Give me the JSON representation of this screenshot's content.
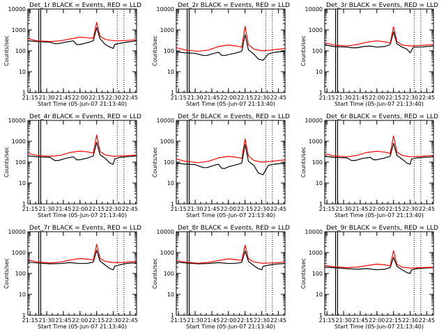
{
  "chart_data": [
    {
      "type": "line",
      "title": "Det_1r BLACK = Events, RED = LLD",
      "xlabel": "Start Time (05-Jun-07 21:13:40)",
      "ylabel": "Counts/sec",
      "xticks": [
        "21:15",
        "21:30",
        "21:45",
        "22:00",
        "22:15",
        "22:30",
        "22:45"
      ],
      "yticks": [
        "1",
        "10",
        "100",
        "1000",
        "10000"
      ],
      "xlim": [
        21.217,
        22.85
      ],
      "ylim": [
        1,
        10000
      ],
      "yscale": "log",
      "series": [
        {
          "color": "#000000",
          "x": [
            21.22,
            21.35,
            21.55,
            21.62,
            21.68,
            21.78,
            21.9,
            21.95,
            22.0,
            22.12,
            22.2,
            22.25,
            22.3,
            22.38,
            22.45,
            22.5,
            22.52,
            22.6,
            22.7,
            22.85
          ],
          "y": [
            300,
            280,
            260,
            220,
            220,
            260,
            300,
            200,
            200,
            250,
            300,
            1300,
            380,
            200,
            150,
            130,
            200,
            230,
            260,
            300
          ]
        },
        {
          "color": "#ff0000",
          "x": [
            21.22,
            21.35,
            21.55,
            21.7,
            21.85,
            22.0,
            22.12,
            22.2,
            22.25,
            22.3,
            22.38,
            22.45,
            22.55,
            22.65,
            22.75,
            22.85
          ],
          "y": [
            380,
            300,
            280,
            300,
            370,
            450,
            420,
            400,
            2300,
            500,
            350,
            320,
            300,
            310,
            320,
            340
          ]
        }
      ],
      "vlines_solid": [
        21.38,
        21.41
      ],
      "vlines_dotted": [
        22.56,
        22.66
      ]
    },
    {
      "type": "line",
      "title": "Det_2r BLACK = Events, RED = LLD",
      "xlabel": "Start Time (05-Jun-07 21:13:40)",
      "ylabel": "Counts/sec",
      "xticks": [
        "21:15",
        "21:30",
        "21:45",
        "22:00",
        "22:15",
        "22:30",
        "22:45"
      ],
      "yticks": [
        "1",
        "10",
        "100",
        "1000",
        "10000"
      ],
      "xlim": [
        21.217,
        22.85
      ],
      "ylim": [
        1,
        10000
      ],
      "yscale": "log",
      "series": [
        {
          "color": "#000000",
          "x": [
            21.22,
            21.35,
            21.5,
            21.62,
            21.68,
            21.75,
            21.85,
            21.9,
            21.95,
            22.0,
            22.12,
            22.2,
            22.25,
            22.3,
            22.38,
            22.45,
            22.52,
            22.6,
            22.7,
            22.85
          ],
          "y": [
            90,
            80,
            75,
            60,
            60,
            70,
            85,
            60,
            60,
            65,
            80,
            95,
            600,
            110,
            70,
            40,
            35,
            70,
            85,
            95
          ]
        },
        {
          "color": "#ff0000",
          "x": [
            21.22,
            21.35,
            21.55,
            21.7,
            21.85,
            22.0,
            22.12,
            22.2,
            22.25,
            22.3,
            22.38,
            22.5,
            22.65,
            22.85
          ],
          "y": [
            140,
            110,
            95,
            110,
            160,
            190,
            170,
            150,
            1500,
            200,
            120,
            100,
            110,
            130
          ]
        }
      ],
      "vlines_solid": [
        21.38,
        21.41
      ],
      "vlines_dotted": [
        22.56,
        22.66
      ]
    },
    {
      "type": "line",
      "title": "Det_3r BLACK = Events, RED = LLD",
      "xlabel": "Start Time (05-Jun-07 21:13:40)",
      "ylabel": "Counts/sec",
      "xticks": [
        "21:15",
        "21:30",
        "21:45",
        "22:00",
        "22:15",
        "22:30",
        "22:45"
      ],
      "yticks": [
        "1",
        "10",
        "100",
        "1000",
        "10000"
      ],
      "xlim": [
        21.217,
        22.85
      ],
      "ylim": [
        1,
        10000
      ],
      "yscale": "log",
      "series": [
        {
          "color": "#000000",
          "x": [
            21.22,
            21.35,
            21.55,
            21.62,
            21.7,
            21.8,
            21.9,
            22.0,
            22.12,
            22.2,
            22.25,
            22.3,
            22.38,
            22.45,
            22.5,
            22.55,
            22.65,
            22.75,
            22.85
          ],
          "y": [
            190,
            160,
            150,
            140,
            140,
            160,
            170,
            150,
            160,
            200,
            800,
            220,
            150,
            120,
            80,
            150,
            150,
            160,
            170
          ]
        },
        {
          "color": "#ff0000",
          "x": [
            21.22,
            21.35,
            21.55,
            21.7,
            21.85,
            22.0,
            22.12,
            22.2,
            22.25,
            22.3,
            22.38,
            22.5,
            22.65,
            22.85
          ],
          "y": [
            240,
            190,
            170,
            200,
            260,
            300,
            270,
            230,
            1400,
            280,
            190,
            170,
            180,
            200
          ]
        }
      ],
      "vlines_solid": [
        21.38,
        21.41
      ],
      "vlines_dotted": [
        22.56,
        22.66
      ]
    },
    {
      "type": "line",
      "title": "Det_4r BLACK = Events, RED = LLD",
      "xlabel": "Start Time (05-Jun-07 21:13:40)",
      "ylabel": "Counts/sec",
      "xticks": [
        "21:15",
        "21:30",
        "21:45",
        "22:00",
        "22:15",
        "22:30",
        "22:45"
      ],
      "yticks": [
        "1",
        "10",
        "100",
        "1000",
        "10000"
      ],
      "xlim": [
        21.217,
        22.85
      ],
      "ylim": [
        1,
        10000
      ],
      "yscale": "log",
      "series": [
        {
          "color": "#000000",
          "x": [
            21.22,
            21.35,
            21.55,
            21.62,
            21.68,
            21.78,
            21.9,
            21.95,
            22.0,
            22.12,
            22.2,
            22.25,
            22.3,
            22.38,
            22.45,
            22.5,
            22.52,
            22.6,
            22.7,
            22.85
          ],
          "y": [
            200,
            180,
            170,
            120,
            120,
            150,
            180,
            130,
            130,
            160,
            200,
            900,
            230,
            150,
            90,
            80,
            140,
            170,
            180,
            200
          ]
        },
        {
          "color": "#ff0000",
          "x": [
            21.22,
            21.35,
            21.55,
            21.7,
            21.85,
            22.0,
            22.12,
            22.2,
            22.25,
            22.3,
            22.38,
            22.5,
            22.65,
            22.85
          ],
          "y": [
            260,
            210,
            190,
            210,
            290,
            340,
            310,
            270,
            2000,
            320,
            220,
            190,
            200,
            220
          ]
        }
      ],
      "vlines_solid": [
        21.38,
        21.41
      ],
      "vlines_dotted": [
        22.56,
        22.66
      ]
    },
    {
      "type": "line",
      "title": "Det_5r BLACK = Events, RED = LLD",
      "xlabel": "Start Time (05-Jun-07 21:13:40)",
      "ylabel": "Counts/sec",
      "xticks": [
        "21:15",
        "21:30",
        "21:45",
        "22:00",
        "22:15",
        "22:30",
        "22:45"
      ],
      "yticks": [
        "1",
        "10",
        "100",
        "1000",
        "10000"
      ],
      "xlim": [
        21.217,
        22.85
      ],
      "ylim": [
        1,
        10000
      ],
      "yscale": "log",
      "series": [
        {
          "color": "#000000",
          "x": [
            21.22,
            21.35,
            21.5,
            21.62,
            21.68,
            21.75,
            21.85,
            21.9,
            21.95,
            22.0,
            22.12,
            22.2,
            22.25,
            22.3,
            22.38,
            22.45,
            22.52,
            22.6,
            22.7,
            22.85
          ],
          "y": [
            90,
            80,
            75,
            55,
            55,
            65,
            80,
            50,
            50,
            60,
            75,
            90,
            700,
            110,
            70,
            30,
            25,
            70,
            80,
            90
          ]
        },
        {
          "color": "#ff0000",
          "x": [
            21.22,
            21.35,
            21.55,
            21.7,
            21.85,
            22.0,
            22.12,
            22.2,
            22.25,
            22.3,
            22.38,
            22.5,
            22.65,
            22.85
          ],
          "y": [
            140,
            110,
            95,
            110,
            160,
            190,
            170,
            150,
            1300,
            200,
            120,
            100,
            110,
            130
          ]
        }
      ],
      "vlines_solid": [
        21.38,
        21.41
      ],
      "vlines_dotted": [
        22.56,
        22.66
      ]
    },
    {
      "type": "line",
      "title": "Det_6r BLACK = Events, RED = LLD",
      "xlabel": "Start Time (05-Jun-07 21:13:40)",
      "ylabel": "Counts/sec",
      "xticks": [
        "21:15",
        "21:30",
        "21:45",
        "22:00",
        "22:15",
        "22:30",
        "22:45"
      ],
      "yticks": [
        "1",
        "10",
        "100",
        "1000",
        "10000"
      ],
      "xlim": [
        21.217,
        22.85
      ],
      "ylim": [
        1,
        10000
      ],
      "yscale": "log",
      "series": [
        {
          "color": "#000000",
          "x": [
            21.22,
            21.35,
            21.55,
            21.62,
            21.68,
            21.78,
            21.9,
            21.95,
            22.0,
            22.12,
            22.2,
            22.25,
            22.3,
            22.38,
            22.45,
            22.5,
            22.52,
            22.6,
            22.7,
            22.85
          ],
          "y": [
            190,
            170,
            160,
            120,
            120,
            150,
            170,
            130,
            130,
            160,
            190,
            800,
            210,
            140,
            90,
            80,
            140,
            160,
            170,
            180
          ]
        },
        {
          "color": "#ff0000",
          "x": [
            21.22,
            21.35,
            21.55,
            21.7,
            21.85,
            22.0,
            22.12,
            22.2,
            22.25,
            22.3,
            22.38,
            22.5,
            22.65,
            22.85
          ],
          "y": [
            250,
            200,
            180,
            210,
            290,
            330,
            300,
            260,
            1800,
            300,
            210,
            180,
            190,
            210
          ]
        }
      ],
      "vlines_solid": [
        21.38,
        21.41
      ],
      "vlines_dotted": [
        22.56,
        22.66
      ]
    },
    {
      "type": "line",
      "title": "Det_7r BLACK = Events, RED = LLD",
      "xlabel": "Start Time (05-Jun-07 21:13:40)",
      "ylabel": "Counts/sec",
      "xticks": [
        "21:15",
        "21:30",
        "21:45",
        "22:00",
        "22:15",
        "22:30",
        "22:45"
      ],
      "yticks": [
        "1",
        "10",
        "100",
        "1000",
        "10000"
      ],
      "xlim": [
        21.217,
        22.85
      ],
      "ylim": [
        1,
        10000
      ],
      "yscale": "log",
      "series": [
        {
          "color": "#000000",
          "x": [
            21.22,
            21.35,
            21.55,
            21.7,
            21.85,
            22.0,
            22.12,
            22.2,
            22.25,
            22.3,
            22.38,
            22.45,
            22.5,
            22.52,
            22.6,
            22.7,
            22.85
          ],
          "y": [
            350,
            320,
            290,
            300,
            330,
            300,
            310,
            350,
            1300,
            400,
            250,
            170,
            150,
            220,
            260,
            300,
            330
          ]
        },
        {
          "color": "#ff0000",
          "x": [
            21.22,
            21.35,
            21.55,
            21.7,
            21.85,
            22.0,
            22.12,
            22.2,
            22.25,
            22.3,
            22.38,
            22.5,
            22.65,
            22.85
          ],
          "y": [
            450,
            360,
            320,
            350,
            440,
            520,
            480,
            440,
            2500,
            520,
            380,
            330,
            340,
            380
          ]
        }
      ],
      "vlines_solid": [
        21.38,
        21.41
      ],
      "vlines_dotted": [
        22.56,
        22.66
      ]
    },
    {
      "type": "line",
      "title": "Det_8r BLACK = Events, RED = LLD",
      "xlabel": "Start Time (05-Jun-07 21:13:40)",
      "ylabel": "Counts/sec",
      "xticks": [
        "21:15",
        "21:30",
        "21:45",
        "22:00",
        "22:15",
        "22:30",
        "22:45"
      ],
      "yticks": [
        "1",
        "10",
        "100",
        "1000",
        "10000"
      ],
      "xlim": [
        21.217,
        22.85
      ],
      "ylim": [
        1,
        10000
      ],
      "yscale": "log",
      "series": [
        {
          "color": "#000000",
          "x": [
            21.22,
            21.35,
            21.55,
            21.7,
            21.85,
            22.0,
            22.12,
            22.2,
            22.25,
            22.3,
            22.38,
            22.45,
            22.5,
            22.52,
            22.6,
            22.7,
            22.85
          ],
          "y": [
            350,
            320,
            290,
            300,
            330,
            300,
            310,
            340,
            1200,
            380,
            240,
            170,
            150,
            220,
            250,
            280,
            300
          ]
        },
        {
          "color": "#ff0000",
          "x": [
            21.22,
            21.35,
            21.55,
            21.7,
            21.85,
            22.0,
            22.12,
            22.2,
            22.25,
            22.3,
            22.38,
            22.5,
            22.65,
            22.85
          ],
          "y": [
            420,
            350,
            310,
            340,
            420,
            500,
            460,
            420,
            2300,
            500,
            360,
            310,
            320,
            350
          ]
        }
      ],
      "vlines_solid": [
        21.38,
        21.41
      ],
      "vlines_dotted": [
        22.56,
        22.66
      ]
    },
    {
      "type": "line",
      "title": "Det_9r BLACK = Events, RED = LLD",
      "xlabel": "Start Time (05-Jun-07 21:13:40)",
      "ylabel": "Counts/sec",
      "xticks": [
        "21:15",
        "21:30",
        "21:45",
        "22:00",
        "22:15",
        "22:30",
        "22:45"
      ],
      "yticks": [
        "1",
        "10",
        "100",
        "1000",
        "10000"
      ],
      "xlim": [
        21.217,
        22.85
      ],
      "ylim": [
        1,
        10000
      ],
      "yscale": "log",
      "series": [
        {
          "color": "#000000",
          "x": [
            21.22,
            21.35,
            21.55,
            21.7,
            21.85,
            22.0,
            22.12,
            22.2,
            22.25,
            22.3,
            22.38,
            22.45,
            22.5,
            22.52,
            22.6,
            22.7,
            22.85
          ],
          "y": [
            200,
            190,
            170,
            160,
            170,
            150,
            160,
            190,
            600,
            220,
            150,
            110,
            100,
            150,
            170,
            180,
            190
          ]
        },
        {
          "color": "#ff0000",
          "x": [
            21.22,
            21.35,
            21.55,
            21.7,
            21.85,
            22.0,
            22.12,
            22.2,
            22.25,
            22.3,
            22.38,
            22.5,
            22.65,
            22.85
          ],
          "y": [
            240,
            210,
            190,
            200,
            240,
            280,
            260,
            230,
            1200,
            270,
            200,
            180,
            190,
            200
          ]
        }
      ],
      "vlines_solid": [
        21.38,
        21.41
      ],
      "vlines_dotted": [
        22.56,
        22.66
      ]
    }
  ]
}
